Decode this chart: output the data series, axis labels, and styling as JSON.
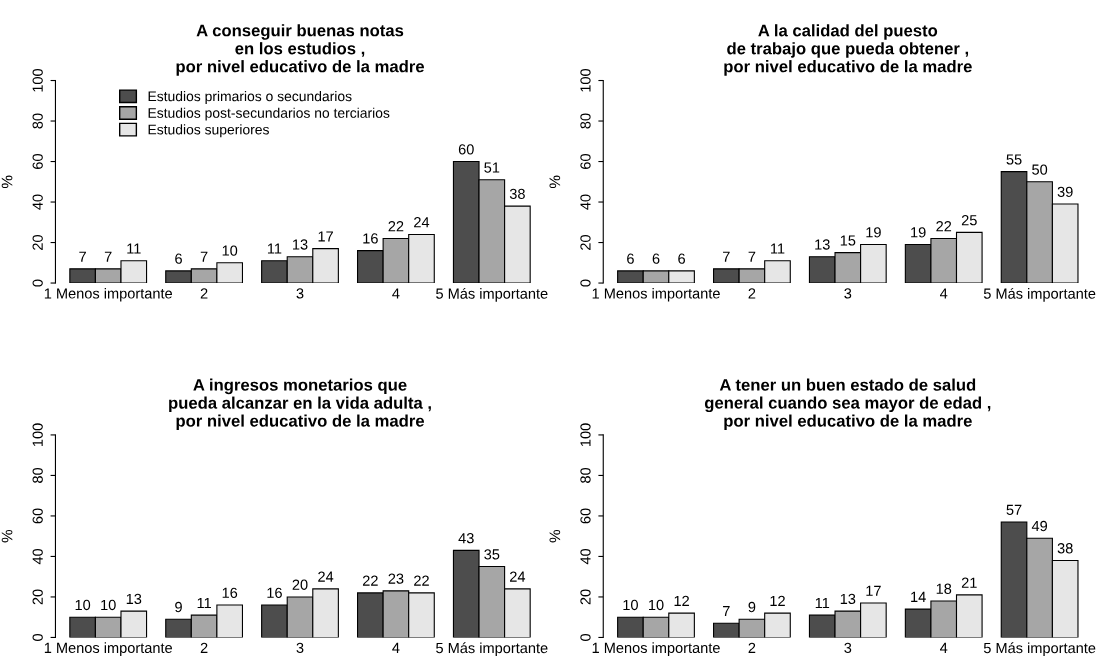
{
  "chart_data": [
    {
      "type": "bar",
      "title": "A conseguir buenas notas\nen los estudios ,\npor nivel educativo de la madre",
      "ylabel": "%",
      "categories": [
        "1 Menos importante",
        "2",
        "3",
        "4",
        "5 Más importante"
      ],
      "ylim": [
        0,
        100
      ],
      "yticks": [
        0,
        20,
        40,
        60,
        80,
        100
      ],
      "data_labels": true,
      "grid": false,
      "legend": "top left",
      "series": [
        {
          "name": "Estudios primarios o secundarios",
          "color": "#4d4d4d",
          "values": [
            7,
            6,
            11,
            16,
            60
          ]
        },
        {
          "name": "Estudios post-secundarios no terciarios",
          "color": "#a6a6a6",
          "values": [
            7,
            7,
            13,
            22,
            51
          ]
        },
        {
          "name": "Estudios superiores",
          "color": "#e6e6e6",
          "values": [
            11,
            10,
            17,
            24,
            38
          ]
        }
      ]
    },
    {
      "type": "bar",
      "title": "A la calidad del puesto\nde trabajo que pueda obtener ,\npor nivel educativo de la madre",
      "ylabel": "%",
      "categories": [
        "1 Menos importante",
        "2",
        "3",
        "4",
        "5 Más importante"
      ],
      "ylim": [
        0,
        100
      ],
      "yticks": [
        0,
        20,
        40,
        60,
        80,
        100
      ],
      "data_labels": true,
      "grid": false,
      "series": [
        {
          "color": "#4d4d4d",
          "values": [
            6,
            7,
            13,
            19,
            55
          ]
        },
        {
          "color": "#a6a6a6",
          "values": [
            6,
            7,
            15,
            22,
            50
          ]
        },
        {
          "color": "#e6e6e6",
          "values": [
            6,
            11,
            19,
            25,
            39
          ]
        }
      ]
    },
    {
      "type": "bar",
      "title": "A ingresos monetarios que\npueda alcanzar en la vida adulta ,\npor nivel educativo de la madre",
      "ylabel": "%",
      "categories": [
        "1 Menos importante",
        "2",
        "3",
        "4",
        "5 Más importante"
      ],
      "ylim": [
        0,
        100
      ],
      "yticks": [
        0,
        20,
        40,
        60,
        80,
        100
      ],
      "data_labels": true,
      "grid": false,
      "series": [
        {
          "color": "#4d4d4d",
          "values": [
            10,
            9,
            16,
            22,
            43
          ]
        },
        {
          "color": "#a6a6a6",
          "values": [
            10,
            11,
            20,
            23,
            35
          ]
        },
        {
          "color": "#e6e6e6",
          "values": [
            13,
            16,
            24,
            22,
            24
          ]
        }
      ]
    },
    {
      "type": "bar",
      "title": "A tener un buen estado de salud\ngeneral cuando sea mayor de edad ,\npor nivel educativo de la madre",
      "ylabel": "%",
      "categories": [
        "1 Menos importante",
        "2",
        "3",
        "4",
        "5 Más importante"
      ],
      "ylim": [
        0,
        100
      ],
      "yticks": [
        0,
        20,
        40,
        60,
        80,
        100
      ],
      "data_labels": true,
      "grid": false,
      "series": [
        {
          "color": "#4d4d4d",
          "values": [
            10,
            7,
            11,
            14,
            57
          ]
        },
        {
          "color": "#a6a6a6",
          "values": [
            10,
            9,
            13,
            18,
            49
          ]
        },
        {
          "color": "#e6e6e6",
          "values": [
            12,
            12,
            17,
            21,
            38
          ]
        }
      ]
    }
  ]
}
